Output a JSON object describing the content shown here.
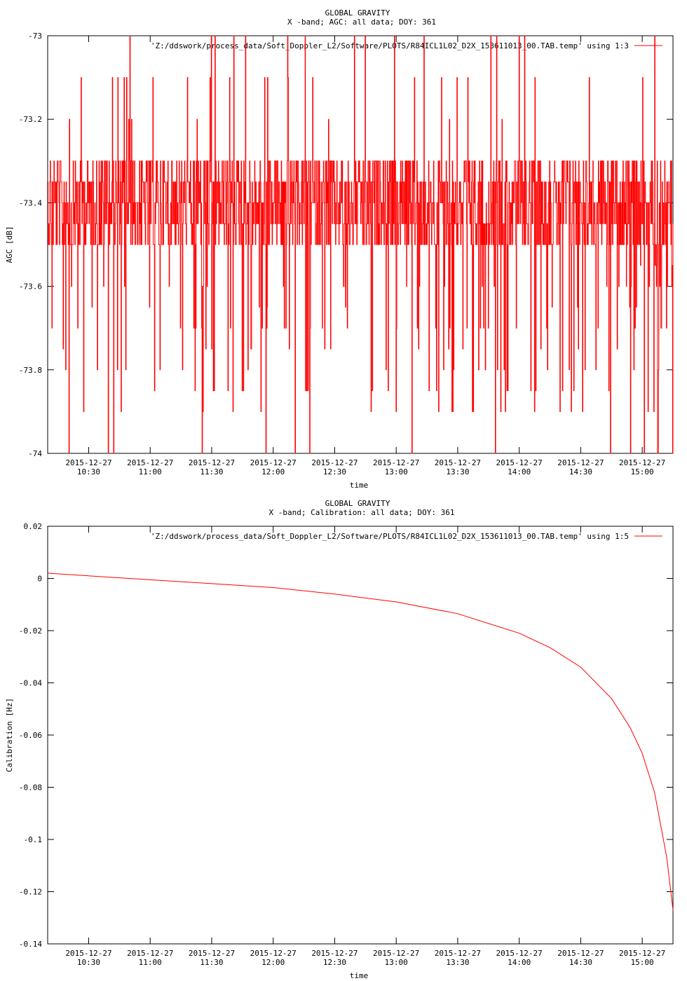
{
  "chart_data": [
    {
      "type": "line",
      "title": "GLOBAL GRAVITY",
      "subtitle": "X -band; AGC: all data; DOY: 361",
      "xlabel": "time",
      "ylabel": "AGC [dB]",
      "ylim": [
        -74,
        -73
      ],
      "yticks": [
        "-73",
        "-73.2",
        "-73.4",
        "-73.6",
        "-73.8",
        "-74"
      ],
      "ytick_values": [
        -73,
        -73.2,
        -73.4,
        -73.6,
        -73.8,
        -74
      ],
      "xlim_hours": [
        10.1667,
        15.25
      ],
      "xtick_hours": [
        10.5,
        11.0,
        11.5,
        12.0,
        12.5,
        13.0,
        13.5,
        14.0,
        14.5,
        15.0
      ],
      "xtick_dates": [
        "2015-12-27",
        "2015-12-27",
        "2015-12-27",
        "2015-12-27",
        "2015-12-27",
        "2015-12-27",
        "2015-12-27",
        "2015-12-27",
        "2015-12-27",
        "2015-12-27"
      ],
      "xtick_times": [
        "10:30",
        "11:00",
        "11:30",
        "12:00",
        "12:30",
        "13:00",
        "13:30",
        "14:00",
        "14:30",
        "15:00"
      ],
      "legend": "'Z:/ddswork/process_data/Soft_Doppler_L2/Software/PLOTS/R84ICL1L02_D2X_153611013_00.TAB.temp' using 1:3",
      "legend_position": "top-right",
      "grid": false,
      "series": [
        {
          "color": "#ff0000",
          "style": "noisy",
          "level_bands": [
            -73.3,
            -73.35,
            -73.4,
            -73.45,
            -73.5
          ],
          "spike_values": [
            -73.0,
            -73.1,
            -73.2,
            -73.6,
            -73.65,
            -73.7,
            -73.75,
            -73.8,
            -73.85,
            -73.9,
            -74.0
          ]
        }
      ]
    },
    {
      "type": "line",
      "title": "GLOBAL GRAVITY",
      "subtitle": "X -band; Calibration: all data; DOY: 361",
      "xlabel": "time",
      "ylabel": "Calibration [Hz]",
      "ylim": [
        -0.14,
        0.02
      ],
      "yticks": [
        "0.02",
        "0",
        "-0.02",
        "-0.04",
        "-0.06",
        "-0.08",
        "-0.1",
        "-0.12",
        "-0.14"
      ],
      "ytick_values": [
        0.02,
        0,
        -0.02,
        -0.04,
        -0.06,
        -0.08,
        -0.1,
        -0.12,
        -0.14
      ],
      "xlim_hours": [
        10.1667,
        15.25
      ],
      "xtick_hours": [
        10.5,
        11.0,
        11.5,
        12.0,
        12.5,
        13.0,
        13.5,
        14.0,
        14.5,
        15.0
      ],
      "xtick_dates": [
        "2015-12-27",
        "2015-12-27",
        "2015-12-27",
        "2015-12-27",
        "2015-12-27",
        "2015-12-27",
        "2015-12-27",
        "2015-12-27",
        "2015-12-27",
        "2015-12-27"
      ],
      "xtick_times": [
        "10:30",
        "11:00",
        "11:30",
        "12:00",
        "12:30",
        "13:00",
        "13:30",
        "14:00",
        "14:30",
        "15:00"
      ],
      "legend": "'Z:/ddswork/process_data/Soft_Doppler_L2/Software/PLOTS/R84ICL1L02_D2X_153611013_00.TAB.temp' using 1:5",
      "legend_position": "top-right",
      "grid": false,
      "series": [
        {
          "color": "#ff0000",
          "x_hours": [
            10.1667,
            10.5,
            11.0,
            11.5,
            12.0,
            12.5,
            13.0,
            13.5,
            14.0,
            14.25,
            14.5,
            14.75,
            14.9,
            15.0,
            15.1,
            15.2,
            15.25
          ],
          "y": [
            0.002,
            0.001,
            -0.0005,
            -0.002,
            -0.0035,
            -0.006,
            -0.009,
            -0.0135,
            -0.021,
            -0.0265,
            -0.034,
            -0.046,
            -0.057,
            -0.067,
            -0.082,
            -0.107,
            -0.127
          ]
        }
      ]
    }
  ]
}
